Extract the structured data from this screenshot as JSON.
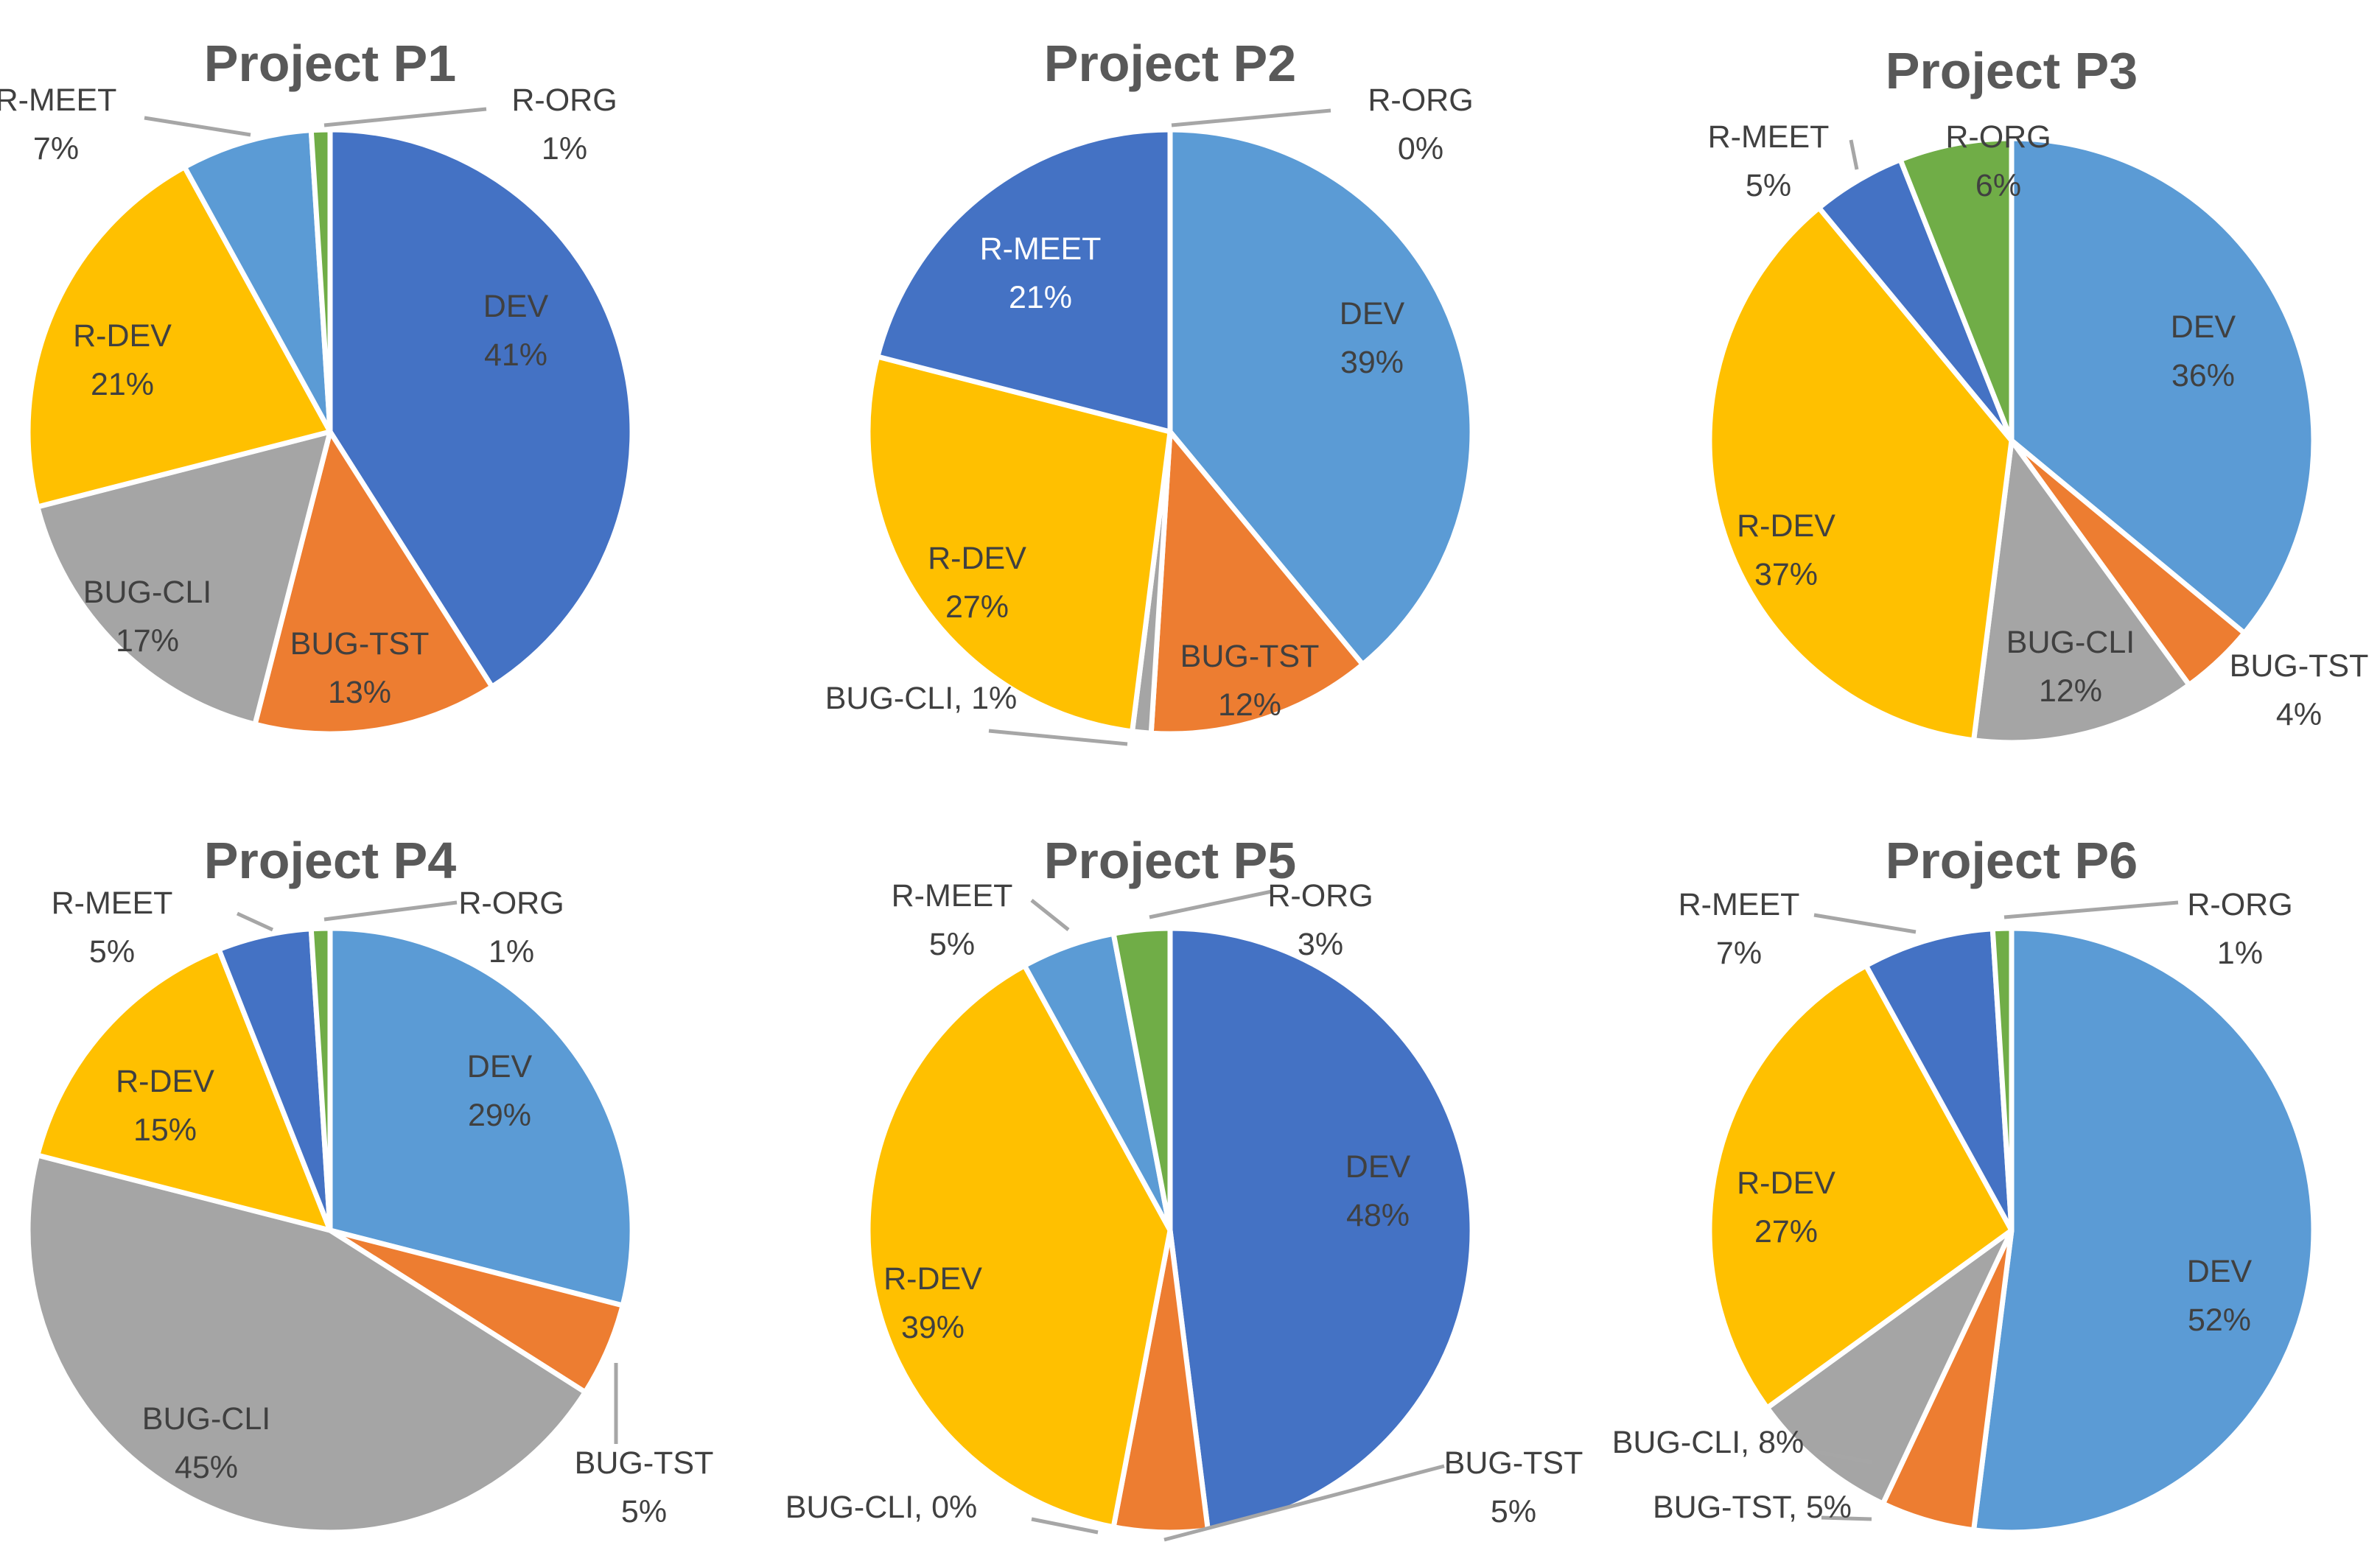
{
  "colors": {
    "DEV_P1": "#4472c4",
    "DEV_light": "#5b9bd5",
    "BUG-TST": "#ed7d31",
    "BUG-CLI": "#a5a5a5",
    "R-DEV": "#ffc000",
    "R-MEET_light": "#5b9bd5",
    "R-MEET_dark": "#4472c4",
    "R-ORG": "#70ad47"
  },
  "chart_data": [
    {
      "type": "pie",
      "title": "Project P1",
      "slices": [
        {
          "label": "DEV",
          "value": 41,
          "pct_text": "41%",
          "color": "#4472c4"
        },
        {
          "label": "BUG-TST",
          "value": 13,
          "pct_text": "13%",
          "color": "#ed7d31"
        },
        {
          "label": "BUG-CLI",
          "value": 17,
          "pct_text": "17%",
          "color": "#a5a5a5"
        },
        {
          "label": "R-DEV",
          "value": 21,
          "pct_text": "21%",
          "color": "#ffc000"
        },
        {
          "label": "R-MEET",
          "value": 7,
          "pct_text": "7%",
          "color": "#5b9bd5"
        },
        {
          "label": "R-ORG",
          "value": 1,
          "pct_text": "1%",
          "color": "#70ad47"
        }
      ]
    },
    {
      "type": "pie",
      "title": "Project P2",
      "slices": [
        {
          "label": "DEV",
          "value": 39,
          "pct_text": "39%",
          "color": "#5b9bd5"
        },
        {
          "label": "BUG-TST",
          "value": 12,
          "pct_text": "12%",
          "color": "#ed7d31"
        },
        {
          "label": "BUG-CLI",
          "value": 1,
          "pct_text": "1%",
          "color": "#a5a5a5"
        },
        {
          "label": "R-DEV",
          "value": 27,
          "pct_text": "27%",
          "color": "#ffc000"
        },
        {
          "label": "R-MEET",
          "value": 21,
          "pct_text": "21%",
          "color": "#4472c4"
        },
        {
          "label": "R-ORG",
          "value": 0,
          "pct_text": "0%",
          "color": "#70ad47"
        }
      ]
    },
    {
      "type": "pie",
      "title": "Project P3",
      "slices": [
        {
          "label": "DEV",
          "value": 36,
          "pct_text": "36%",
          "color": "#5b9bd5"
        },
        {
          "label": "BUG-TST",
          "value": 4,
          "pct_text": "4%",
          "color": "#ed7d31"
        },
        {
          "label": "BUG-CLI",
          "value": 12,
          "pct_text": "12%",
          "color": "#a5a5a5"
        },
        {
          "label": "R-DEV",
          "value": 37,
          "pct_text": "37%",
          "color": "#ffc000"
        },
        {
          "label": "R-MEET",
          "value": 5,
          "pct_text": "5%",
          "color": "#4472c4"
        },
        {
          "label": "R-ORG",
          "value": 6,
          "pct_text": "6%",
          "color": "#70ad47"
        }
      ]
    },
    {
      "type": "pie",
      "title": "Project P4",
      "slices": [
        {
          "label": "DEV",
          "value": 29,
          "pct_text": "29%",
          "color": "#5b9bd5"
        },
        {
          "label": "BUG-TST",
          "value": 5,
          "pct_text": "5%",
          "color": "#ed7d31"
        },
        {
          "label": "BUG-CLI",
          "value": 45,
          "pct_text": "45%",
          "color": "#a5a5a5"
        },
        {
          "label": "R-DEV",
          "value": 15,
          "pct_text": "15%",
          "color": "#ffc000"
        },
        {
          "label": "R-MEET",
          "value": 5,
          "pct_text": "5%",
          "color": "#4472c4"
        },
        {
          "label": "R-ORG",
          "value": 1,
          "pct_text": "1%",
          "color": "#70ad47"
        }
      ]
    },
    {
      "type": "pie",
      "title": "Project P5",
      "slices": [
        {
          "label": "DEV",
          "value": 48,
          "pct_text": "48%",
          "color": "#4472c4"
        },
        {
          "label": "BUG-TST",
          "value": 5,
          "pct_text": "5%",
          "color": "#ed7d31"
        },
        {
          "label": "BUG-CLI",
          "value": 0,
          "pct_text": "0%",
          "color": "#a5a5a5"
        },
        {
          "label": "R-DEV",
          "value": 39,
          "pct_text": "39%",
          "color": "#ffc000"
        },
        {
          "label": "R-MEET",
          "value": 5,
          "pct_text": "5%",
          "color": "#5b9bd5"
        },
        {
          "label": "R-ORG",
          "value": 3,
          "pct_text": "3%",
          "color": "#70ad47"
        }
      ]
    },
    {
      "type": "pie",
      "title": "Project P6",
      "slices": [
        {
          "label": "DEV",
          "value": 52,
          "pct_text": "52%",
          "color": "#5b9bd5"
        },
        {
          "label": "BUG-TST",
          "value": 5,
          "pct_text": "5%",
          "color": "#ed7d31"
        },
        {
          "label": "BUG-CLI",
          "value": 8,
          "pct_text": "8%",
          "color": "#a5a5a5"
        },
        {
          "label": "R-DEV",
          "value": 27,
          "pct_text": "27%",
          "color": "#ffc000"
        },
        {
          "label": "R-MEET",
          "value": 7,
          "pct_text": "7%",
          "color": "#4472c4"
        },
        {
          "label": "R-ORG",
          "value": 1,
          "pct_text": "1%",
          "color": "#70ad47"
        }
      ]
    }
  ]
}
